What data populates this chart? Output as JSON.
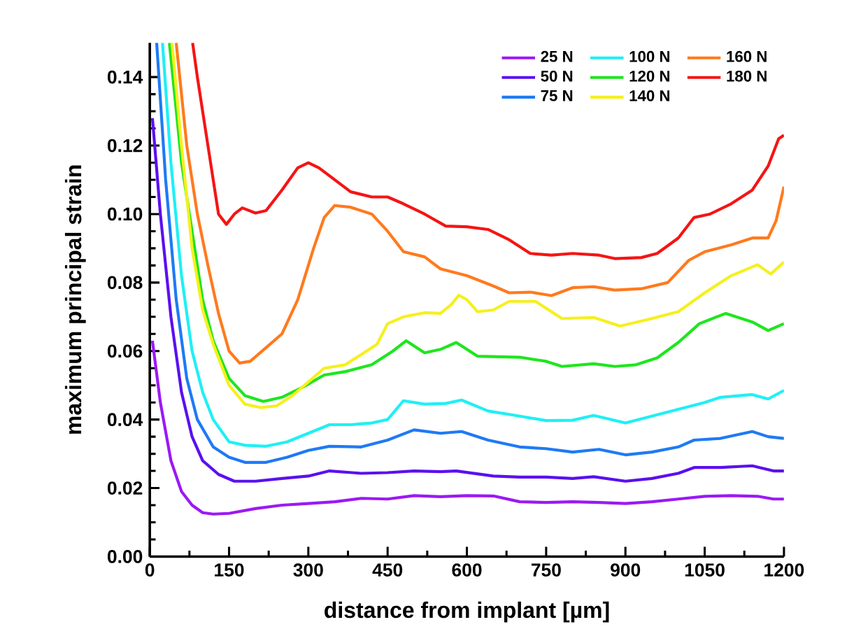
{
  "chart_data": {
    "type": "line",
    "xlabel": "distance from implant [µm]",
    "ylabel": "maximum principal strain",
    "xlim": [
      0,
      1200
    ],
    "ylim": [
      0,
      0.15
    ],
    "xticks": [
      0,
      150,
      300,
      450,
      600,
      750,
      900,
      1050,
      1200
    ],
    "yticks": [
      {
        "value": 0,
        "label": "0.00"
      },
      {
        "value": 0.02,
        "label": "0.02"
      },
      {
        "value": 0.04,
        "label": "0.04"
      },
      {
        "value": 0.06,
        "label": "0.06"
      },
      {
        "value": 0.08,
        "label": "0.08"
      },
      {
        "value": 0.1,
        "label": "0.10"
      },
      {
        "value": 0.12,
        "label": "0.12"
      },
      {
        "value": 0.14,
        "label": "0.14"
      }
    ],
    "grid": false,
    "legend": "top right",
    "marker": "none",
    "line_style": "solid",
    "series": [
      {
        "name": "25 N",
        "color": "#9b19f5",
        "x": [
          5,
          20,
          40,
          60,
          80,
          100,
          120,
          150,
          200,
          250,
          300,
          350,
          400,
          450,
          500,
          550,
          600,
          650,
          700,
          750,
          800,
          850,
          900,
          950,
          1000,
          1050,
          1100,
          1150,
          1180,
          1200
        ],
        "values": [
          0.063,
          0.045,
          0.028,
          0.019,
          0.015,
          0.0128,
          0.0124,
          0.0126,
          0.014,
          0.015,
          0.0155,
          0.016,
          0.017,
          0.0168,
          0.0178,
          0.0175,
          0.0178,
          0.0177,
          0.016,
          0.0158,
          0.016,
          0.0158,
          0.0155,
          0.016,
          0.0168,
          0.0176,
          0.0178,
          0.0176,
          0.0168,
          0.0168
        ]
      },
      {
        "name": "50 N",
        "color": "#5a10f0",
        "x": [
          5,
          20,
          40,
          60,
          80,
          100,
          130,
          160,
          200,
          250,
          300,
          340,
          400,
          450,
          500,
          550,
          580,
          650,
          700,
          750,
          800,
          840,
          900,
          950,
          1000,
          1030,
          1080,
          1140,
          1180,
          1200
        ],
        "values": [
          0.128,
          0.1,
          0.07,
          0.048,
          0.035,
          0.028,
          0.024,
          0.022,
          0.022,
          0.0228,
          0.0235,
          0.025,
          0.0243,
          0.0245,
          0.025,
          0.0248,
          0.025,
          0.0235,
          0.0232,
          0.0232,
          0.0228,
          0.0233,
          0.022,
          0.0228,
          0.0243,
          0.026,
          0.026,
          0.0265,
          0.025,
          0.025
        ]
      },
      {
        "name": "75 N",
        "color": "#1e7af5",
        "x": [
          13,
          30,
          50,
          70,
          90,
          120,
          150,
          180,
          220,
          260,
          300,
          340,
          400,
          450,
          500,
          550,
          590,
          640,
          700,
          750,
          800,
          850,
          900,
          950,
          1000,
          1030,
          1080,
          1140,
          1170,
          1200
        ],
        "values": [
          0.15,
          0.11,
          0.075,
          0.052,
          0.04,
          0.032,
          0.029,
          0.0275,
          0.0275,
          0.029,
          0.031,
          0.0322,
          0.032,
          0.034,
          0.037,
          0.036,
          0.0365,
          0.034,
          0.032,
          0.0315,
          0.0305,
          0.0313,
          0.0297,
          0.0305,
          0.032,
          0.034,
          0.0345,
          0.0365,
          0.035,
          0.0345
        ]
      },
      {
        "name": "100 N",
        "color": "#1ef0f5",
        "x": [
          24,
          40,
          60,
          80,
          100,
          120,
          150,
          180,
          220,
          260,
          300,
          340,
          380,
          420,
          450,
          480,
          520,
          560,
          590,
          640,
          700,
          750,
          800,
          840,
          900,
          950,
          1000,
          1050,
          1080,
          1140,
          1170,
          1200
        ],
        "values": [
          0.15,
          0.115,
          0.082,
          0.06,
          0.048,
          0.04,
          0.0335,
          0.0325,
          0.0322,
          0.0335,
          0.036,
          0.0385,
          0.0385,
          0.039,
          0.04,
          0.0455,
          0.0445,
          0.0447,
          0.0457,
          0.0425,
          0.041,
          0.0397,
          0.0398,
          0.0412,
          0.039,
          0.041,
          0.043,
          0.045,
          0.0465,
          0.0473,
          0.046,
          0.0485
        ]
      },
      {
        "name": "120 N",
        "color": "#1ee61e",
        "x": [
          37,
          60,
          80,
          100,
          120,
          150,
          180,
          215,
          250,
          290,
          330,
          370,
          420,
          460,
          485,
          520,
          550,
          580,
          620,
          700,
          750,
          780,
          840,
          880,
          920,
          960,
          1000,
          1040,
          1090,
          1140,
          1170,
          1200
        ],
        "values": [
          0.15,
          0.115,
          null,
          0.075,
          0.063,
          0.052,
          0.047,
          0.0453,
          0.0465,
          0.0495,
          0.053,
          0.054,
          0.056,
          0.06,
          0.063,
          0.0595,
          0.0605,
          0.0625,
          0.0585,
          0.0582,
          0.057,
          0.0555,
          0.0563,
          0.0555,
          0.056,
          0.058,
          0.0625,
          0.068,
          0.071,
          0.0685,
          0.066,
          0.068
        ]
      },
      {
        "name": "140 N",
        "color": "#f5f01e",
        "x": [
          42,
          60,
          80,
          100,
          120,
          150,
          180,
          210,
          240,
          270,
          300,
          330,
          370,
          400,
          430,
          450,
          480,
          520,
          550,
          570,
          585,
          600,
          620,
          650,
          680,
          730,
          780,
          840,
          890,
          950,
          1000,
          1050,
          1100,
          1150,
          1175,
          1200
        ],
        "values": [
          0.15,
          0.12,
          0.09,
          0.072,
          0.062,
          0.05,
          0.0445,
          0.0435,
          0.044,
          0.047,
          0.051,
          0.055,
          0.056,
          0.059,
          0.062,
          0.068,
          0.07,
          0.0712,
          0.071,
          0.0735,
          0.0763,
          0.075,
          0.0715,
          0.072,
          0.0745,
          0.0745,
          0.0695,
          0.0698,
          0.0673,
          0.0695,
          0.0715,
          0.077,
          0.082,
          0.0852,
          0.0825,
          0.086
        ]
      },
      {
        "name": "160 N",
        "color": "#ff7a1e",
        "x": [
          50,
          70,
          90,
          110,
          130,
          150,
          170,
          190,
          220,
          250,
          280,
          310,
          330,
          350,
          380,
          420,
          450,
          480,
          520,
          550,
          600,
          650,
          680,
          720,
          760,
          800,
          840,
          880,
          930,
          980,
          1020,
          1050,
          1100,
          1140,
          1170,
          1185,
          1200
        ],
        "values": [
          0.15,
          0.12,
          0.1,
          0.085,
          0.071,
          0.06,
          0.0565,
          0.057,
          0.061,
          0.065,
          0.075,
          0.09,
          0.099,
          0.1025,
          0.102,
          0.1,
          0.095,
          0.089,
          0.0875,
          0.084,
          0.082,
          0.079,
          0.077,
          0.0772,
          0.0762,
          0.0785,
          0.0788,
          0.0778,
          0.0782,
          0.08,
          0.0865,
          0.089,
          0.091,
          0.093,
          0.093,
          0.098,
          0.108
        ]
      },
      {
        "name": "180 N",
        "color": "#f51414",
        "x": [
          81,
          90,
          100,
          115,
          130,
          145,
          160,
          175,
          200,
          220,
          250,
          280,
          300,
          320,
          350,
          380,
          420,
          450,
          480,
          520,
          560,
          600,
          640,
          680,
          720,
          760,
          800,
          850,
          880,
          930,
          960,
          1000,
          1030,
          1060,
          1100,
          1140,
          1170,
          1190,
          1200
        ],
        "values": [
          0.15,
          0.14,
          0.13,
          0.115,
          0.1,
          0.097,
          0.1,
          0.1018,
          0.1003,
          0.101,
          0.107,
          0.1135,
          0.115,
          0.1135,
          0.11,
          0.1065,
          0.105,
          0.105,
          0.103,
          0.1,
          0.0965,
          0.0963,
          0.0955,
          0.0925,
          0.0885,
          0.088,
          0.0885,
          0.088,
          0.087,
          0.0873,
          0.0885,
          0.093,
          0.099,
          0.1,
          0.103,
          0.107,
          0.114,
          0.122,
          0.123
        ]
      }
    ]
  }
}
